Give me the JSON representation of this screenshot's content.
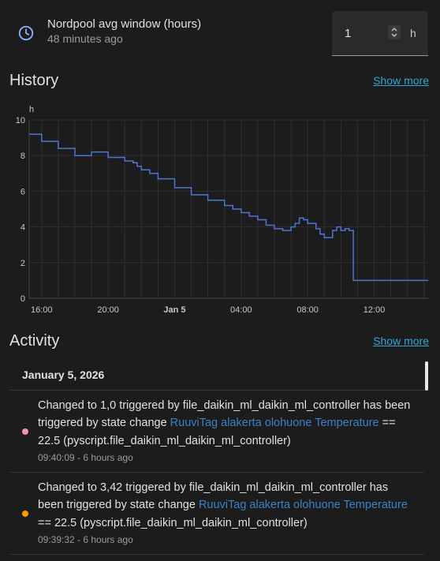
{
  "entity": {
    "name": "Nordpool avg window (hours)",
    "last_changed": "48 minutes ago",
    "value": "1",
    "unit": "h"
  },
  "history": {
    "title": "History",
    "show_more": "Show more"
  },
  "chart_data": {
    "type": "line",
    "unit_label": "h",
    "y_ticks": [
      "0",
      "2",
      "4",
      "6",
      "8",
      "10"
    ],
    "ylim": [
      0,
      10
    ],
    "x_ticks": [
      {
        "label": "16:00",
        "bold": false
      },
      {
        "label": "20:00",
        "bold": false
      },
      {
        "label": "Jan 5",
        "bold": true
      },
      {
        "label": "04:00",
        "bold": false
      },
      {
        "label": "08:00",
        "bold": false
      },
      {
        "label": "12:00",
        "bold": false
      }
    ],
    "grid": true,
    "line_color": "#4c76d4",
    "series": [
      {
        "x": [
          15.25,
          16.0,
          17.0,
          18.0,
          19.0,
          20.0,
          21.0,
          21.5,
          21.75,
          22.0,
          22.5,
          23.0,
          24.0,
          25.0,
          26.0,
          27.0,
          27.5,
          28.0,
          28.5,
          29.0,
          29.5,
          30.0,
          30.5,
          31.0,
          31.25,
          31.5,
          31.75,
          32.0,
          32.25,
          32.5,
          32.75,
          33.0,
          33.5,
          33.75,
          34.0,
          34.25,
          34.5,
          34.75,
          35.0,
          35.25,
          35.5,
          35.75,
          36.0,
          36.25,
          36.5,
          37.5,
          39.25
        ],
        "y": [
          9.2,
          8.8,
          8.4,
          8.0,
          8.2,
          7.9,
          7.7,
          7.6,
          7.4,
          7.2,
          7.0,
          6.7,
          6.2,
          5.8,
          5.5,
          5.2,
          5.0,
          4.8,
          4.6,
          4.4,
          4.1,
          3.9,
          3.8,
          4.0,
          4.2,
          4.5,
          4.4,
          4.2,
          4.2,
          3.9,
          3.6,
          3.4,
          3.8,
          4.0,
          3.8,
          3.9,
          3.8,
          1.0,
          1.0,
          1.0,
          1.0,
          1.0,
          1.0,
          1.0,
          1.0,
          1.0,
          1.0
        ]
      }
    ]
  },
  "activity": {
    "title": "Activity",
    "show_more": "Show more",
    "day": "January 5, 2026",
    "entries": [
      {
        "text_before": "Changed to 1,0 triggered by file_daikin_ml_daikin_ml_controller has been triggered by state change ",
        "link": "RuuviTag alakerta olohuone Temperature",
        "text_after": " == 22.5 (pyscript.file_daikin_ml_daikin_ml_controller)",
        "time": "09:40:09 - 6 hours ago",
        "dot_color": "#f48fb1"
      },
      {
        "text_before": "Changed to 3,42 triggered by file_daikin_ml_daikin_ml_controller has been triggered by state change ",
        "link": "RuuviTag alakerta olohuone Temperature",
        "text_after": " == 22.5 (pyscript.file_daikin_ml_daikin_ml_controller)",
        "time": "09:39:32 - 6 hours ago",
        "dot_color": "#ff9800"
      }
    ]
  }
}
